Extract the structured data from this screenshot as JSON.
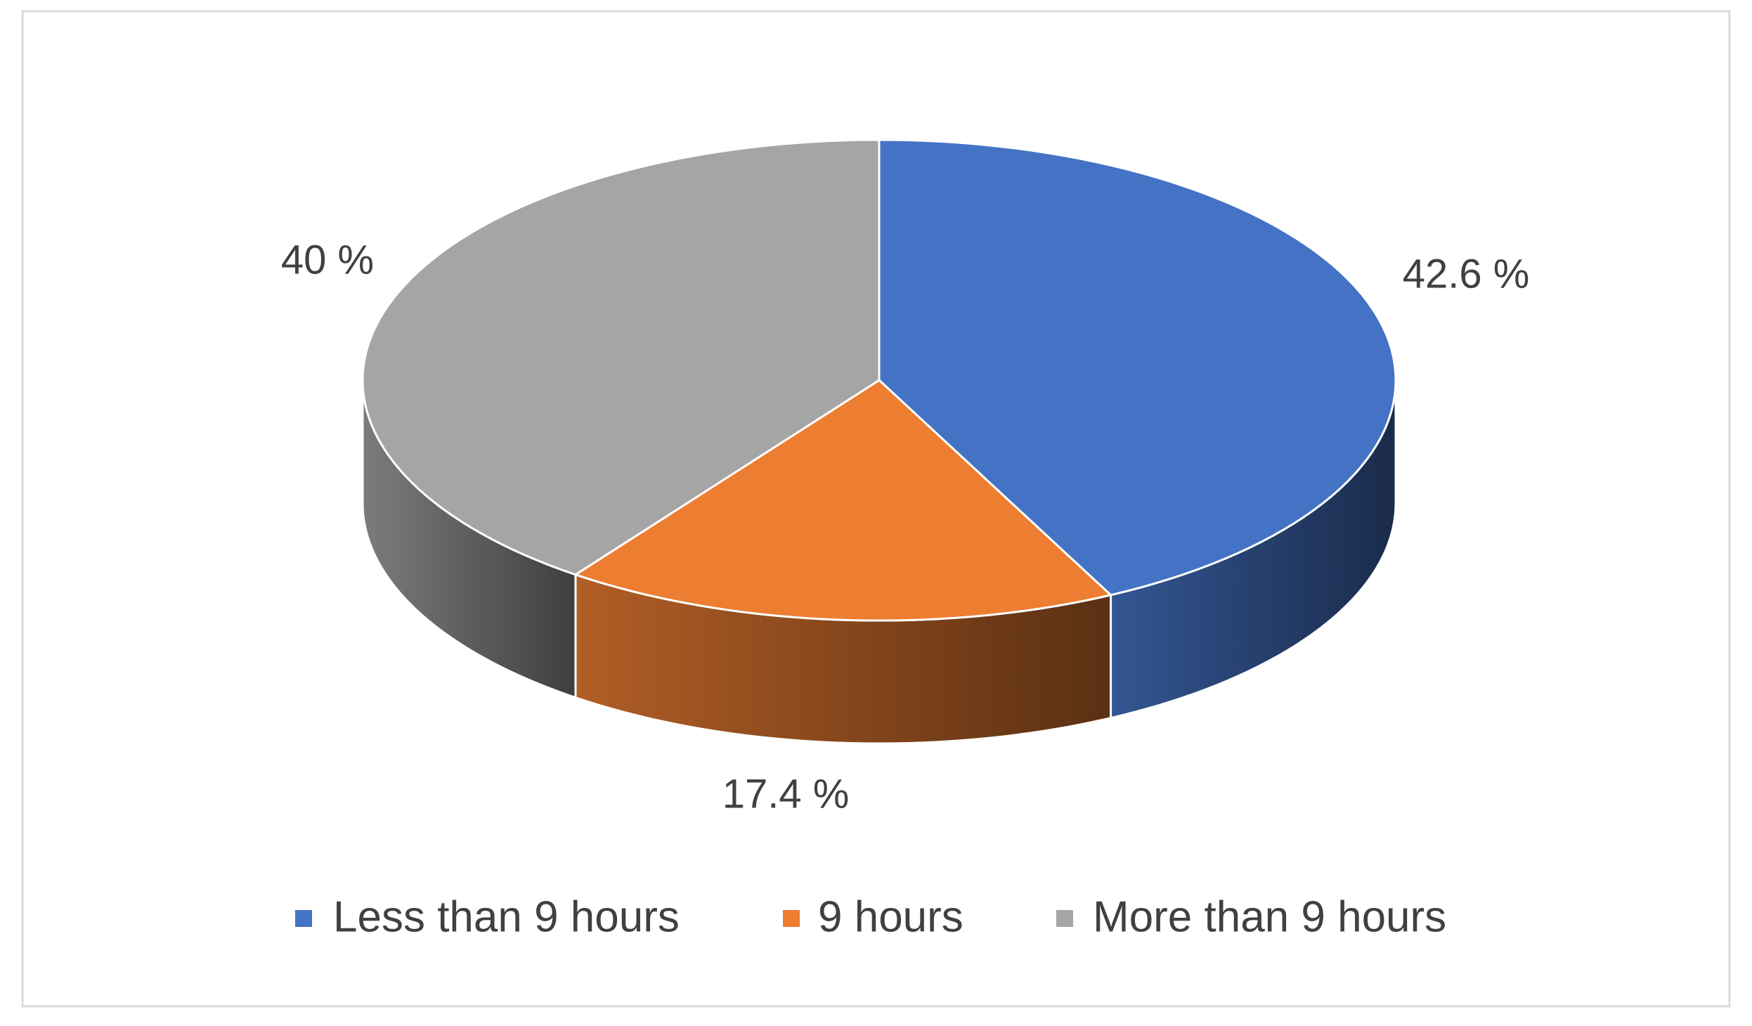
{
  "chart_data": {
    "type": "pie",
    "categories": [
      "Less than 9 hours",
      "9 hours",
      "More than 9 hours"
    ],
    "values": [
      42.6,
      17.4,
      40
    ],
    "value_labels": [
      "42.6 %",
      "17.4 %",
      "40 %"
    ],
    "colors": [
      "#4472c4",
      "#ed7d31",
      "#a5a5a5"
    ]
  }
}
